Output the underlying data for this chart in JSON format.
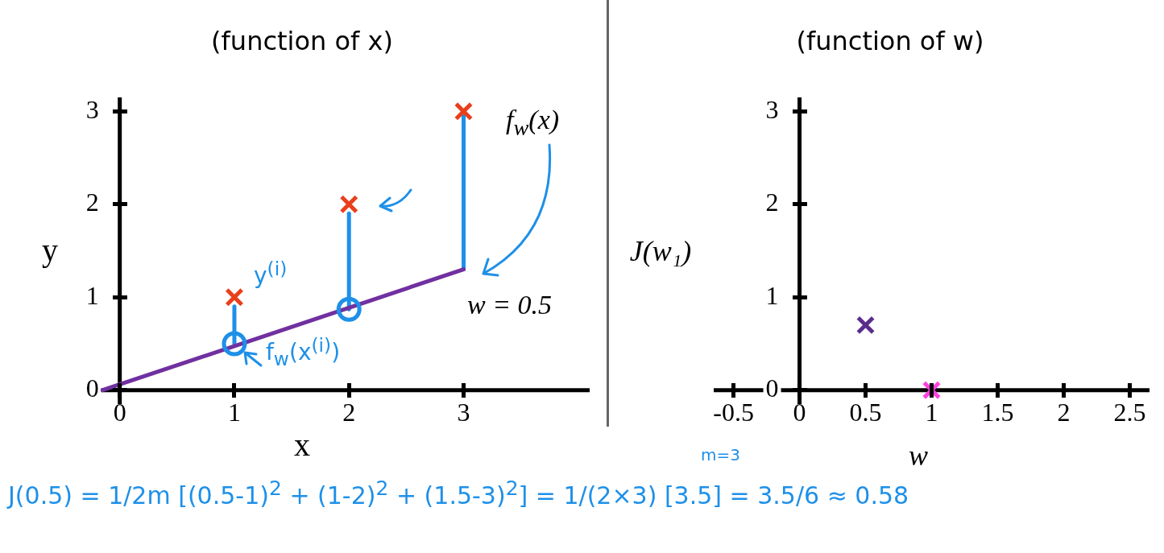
{
  "chart_data": [
    {
      "type": "scatter",
      "title": "(function of x)",
      "xlabel": "x",
      "ylabel": "y",
      "xlim": [
        -0.3,
        4.1
      ],
      "ylim": [
        -0.15,
        3.15
      ],
      "xticks": [
        0,
        1,
        2,
        3
      ],
      "yticks": [
        0,
        1,
        2,
        3
      ],
      "grid": false,
      "legend": false,
      "series": [
        {
          "type": "line",
          "color": "#7030a0",
          "x": [
            -0.15,
            3
          ],
          "values": [
            0,
            1.3
          ],
          "marker": "none"
        },
        {
          "type": "line",
          "color": "#1e90e8",
          "x": [
            1,
            1
          ],
          "values": [
            0.5,
            0.9
          ],
          "marker": "none"
        },
        {
          "type": "line",
          "color": "#1e90e8",
          "x": [
            2,
            2
          ],
          "values": [
            0.87,
            1.9
          ],
          "marker": "none"
        },
        {
          "type": "line",
          "color": "#1e90e8",
          "x": [
            3,
            3
          ],
          "values": [
            1.3,
            2.95
          ],
          "marker": "none"
        },
        {
          "type": "scatter",
          "color": "#1e90e8",
          "x": [
            1,
            2
          ],
          "values": [
            0.5,
            0.87
          ],
          "marker": "circle"
        },
        {
          "type": "scatter",
          "color": "#e8401c",
          "x": [
            1,
            2,
            3
          ],
          "values": [
            1,
            2,
            3
          ],
          "marker": "cross"
        }
      ],
      "annotations": [
        "y$^{(i)}$",
        "f$_{w}$(x$^{(i)}$)",
        "f$_{w}$(x)",
        "w = 0.5",
        "m=3",
        "J(0.5) = 1/2m [(0.5-1)$^{2}$ + (1-2)$^{2}$ + (1.5-3)$^{2}$] = 1/(2×3) [3.5] = 3.5/6 ≈ 0.58"
      ]
    },
    {
      "type": "scatter",
      "title": "(function of w)",
      "xlabel": "w",
      "ylabel": "J(w₁)",
      "xlim": [
        -0.65,
        2.65
      ],
      "ylim": [
        -0.15,
        3.15
      ],
      "xticks": [
        -0.5,
        0,
        0.5,
        1,
        1.5,
        2,
        2.5
      ],
      "yticks": [
        0,
        1,
        2,
        3
      ],
      "grid": false,
      "legend": false,
      "series": [
        {
          "type": "scatter",
          "color": "#5b2e8c",
          "x": [
            0.5
          ],
          "values": [
            0.7
          ],
          "marker": "cross"
        },
        {
          "type": "scatter",
          "color": "#ff40e0",
          "x": [
            1
          ],
          "values": [
            0
          ],
          "marker": "cross"
        }
      ]
    }
  ]
}
